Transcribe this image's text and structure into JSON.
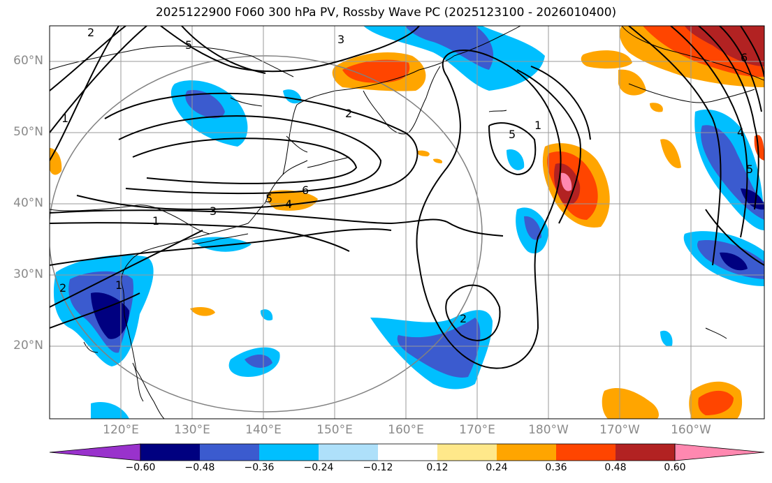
{
  "title": "2025122900 F060 300 hPa PV, Rossby Wave PC (2025123100 - 2026010400)",
  "lat_labels": [
    "60°N",
    "50°N",
    "40°N",
    "30°N",
    "20°N"
  ],
  "lon_labels": [
    "120°E",
    "130°E",
    "140°E",
    "150°E",
    "160°E",
    "170°E",
    "180°W",
    "170°W",
    "160°W"
  ],
  "contour_labels": [
    "2",
    "5",
    "3",
    "1",
    "2",
    "6",
    "5",
    "4",
    "3",
    "1",
    "2",
    "1",
    "2",
    "5",
    "1",
    "4",
    "5",
    "6"
  ],
  "colorbar": {
    "ticks": [
      "−0.60",
      "−0.48",
      "−0.36",
      "−0.24",
      "−0.12",
      "0.12",
      "0.24",
      "0.36",
      "0.48",
      "0.60"
    ],
    "colors": [
      "#9932cc",
      "#000080",
      "#3b5bcf",
      "#00bfff",
      "#aee0fa",
      "#ffffff",
      "#ffe88a",
      "#ffa500",
      "#ff4500",
      "#b22222",
      "#ff88b0"
    ]
  },
  "colors": {
    "strong_negative": "#000080",
    "mid_negative": "#3b5bcf",
    "light_negative": "#00bfff",
    "faint_negative": "#aee0fa",
    "faint_positive": "#ffe88a",
    "light_positive": "#ffa500",
    "mid_positive": "#ff4500",
    "strong_positive": "#b22222",
    "extreme_positive": "#ff88b0"
  }
}
